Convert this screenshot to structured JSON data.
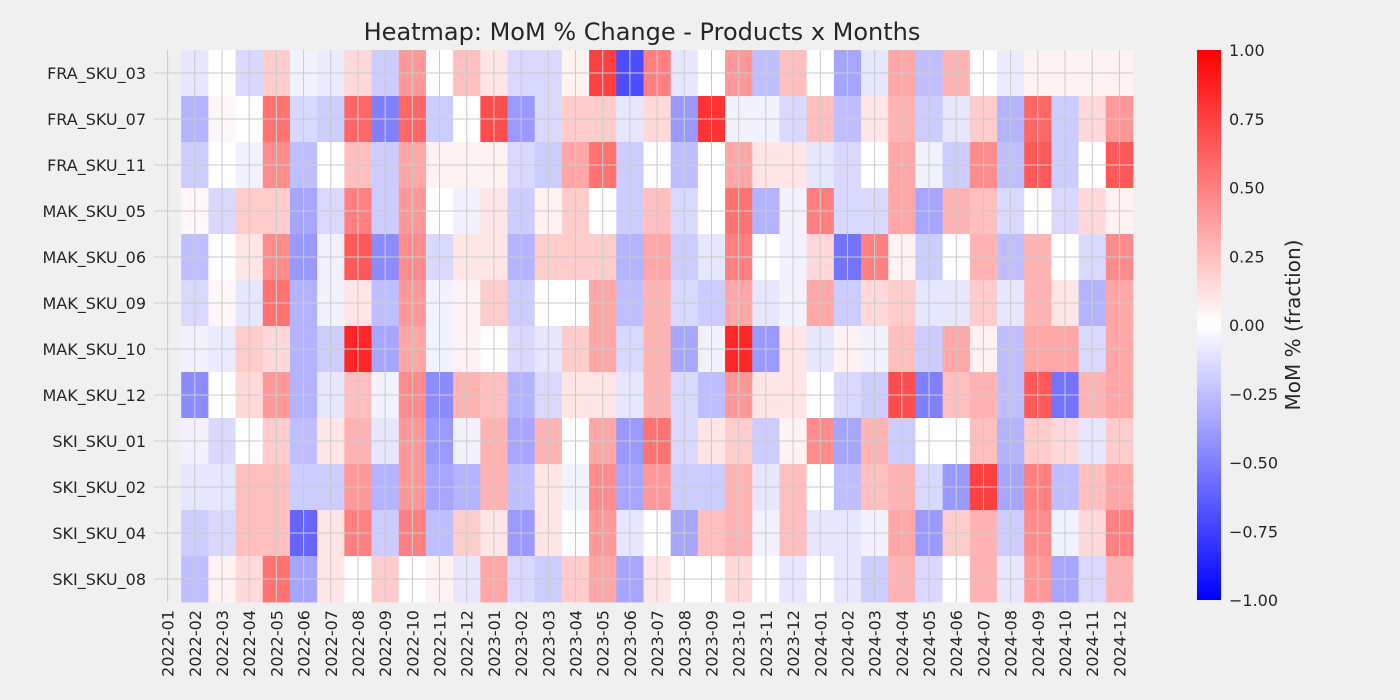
{
  "chart_data": {
    "type": "heatmap",
    "title": "Heatmap: MoM % Change - Products x Months",
    "colorbar_label": "MoM % (fraction)",
    "colormap": "bwr",
    "vmin": -1.0,
    "vmax": 1.0,
    "colorbar_ticks": [
      "1.00",
      "0.75",
      "0.50",
      "0.25",
      "0.00",
      "−0.25",
      "−0.50",
      "−0.75",
      "−1.00"
    ],
    "grid": true,
    "missing_first_month": true,
    "columns": [
      "2022-01",
      "2022-02",
      "2022-03",
      "2022-04",
      "2022-05",
      "2022-06",
      "2022-07",
      "2022-08",
      "2022-09",
      "2022-10",
      "2022-11",
      "2022-12",
      "2023-01",
      "2023-02",
      "2023-03",
      "2023-04",
      "2023-05",
      "2023-06",
      "2023-07",
      "2023-08",
      "2023-09",
      "2023-10",
      "2023-11",
      "2023-12",
      "2024-01",
      "2024-02",
      "2024-03",
      "2024-04",
      "2024-05",
      "2024-06",
      "2024-07",
      "2024-08",
      "2024-09",
      "2024-10",
      "2024-11",
      "2024-12"
    ],
    "rows": [
      "FRA_SKU_03",
      "FRA_SKU_07",
      "FRA_SKU_11",
      "MAK_SKU_05",
      "MAK_SKU_06",
      "MAK_SKU_09",
      "MAK_SKU_10",
      "MAK_SKU_12",
      "SKI_SKU_01",
      "SKI_SKU_02",
      "SKI_SKU_04",
      "SKI_SKU_08"
    ],
    "values": [
      [
        null,
        -0.1,
        0.0,
        -0.15,
        0.2,
        -0.05,
        -0.08,
        0.15,
        -0.2,
        0.4,
        0.0,
        0.25,
        0.1,
        -0.15,
        -0.15,
        0.05,
        0.75,
        -0.7,
        0.5,
        -0.1,
        0.0,
        0.4,
        -0.25,
        0.25,
        0.0,
        -0.35,
        -0.1,
        0.35,
        -0.25,
        0.3,
        0.0,
        -0.08,
        0.05,
        0.05,
        0.05,
        0.05
      ],
      [
        null,
        -0.3,
        0.03,
        0.0,
        0.55,
        -0.15,
        -0.2,
        0.6,
        -0.5,
        0.6,
        -0.2,
        0.0,
        0.7,
        -0.4,
        -0.15,
        0.2,
        0.2,
        -0.1,
        0.15,
        -0.4,
        0.8,
        -0.05,
        -0.05,
        -0.15,
        0.25,
        -0.25,
        0.1,
        0.3,
        -0.2,
        -0.1,
        0.2,
        -0.3,
        0.6,
        -0.2,
        0.15,
        0.4
      ],
      [
        null,
        -0.2,
        0.0,
        -0.05,
        0.45,
        -0.25,
        0.0,
        0.25,
        -0.2,
        0.35,
        0.05,
        0.05,
        0.05,
        -0.15,
        -0.2,
        0.35,
        0.55,
        -0.2,
        0.0,
        -0.25,
        0.0,
        0.35,
        0.1,
        0.1,
        -0.1,
        -0.15,
        0.0,
        0.35,
        -0.05,
        -0.2,
        0.45,
        -0.25,
        0.65,
        -0.2,
        0.0,
        0.65
      ],
      [
        null,
        0.03,
        -0.15,
        0.2,
        0.2,
        -0.35,
        -0.15,
        0.5,
        -0.2,
        0.4,
        0.0,
        -0.05,
        0.1,
        -0.2,
        0.05,
        0.2,
        0.0,
        -0.2,
        0.25,
        -0.15,
        0.0,
        0.55,
        -0.3,
        -0.05,
        0.5,
        -0.15,
        -0.15,
        0.35,
        -0.35,
        0.3,
        0.25,
        -0.15,
        0.0,
        -0.15,
        0.15,
        0.05
      ],
      [
        null,
        -0.25,
        0.0,
        0.1,
        0.45,
        -0.4,
        -0.05,
        0.65,
        -0.45,
        0.45,
        -0.15,
        0.1,
        0.1,
        -0.3,
        0.2,
        0.2,
        0.2,
        -0.3,
        0.35,
        -0.2,
        -0.1,
        0.5,
        0.0,
        -0.05,
        0.15,
        -0.55,
        0.5,
        0.05,
        -0.2,
        0.0,
        0.3,
        -0.25,
        0.3,
        0.0,
        -0.15,
        0.45
      ],
      [
        null,
        -0.15,
        0.03,
        -0.1,
        0.55,
        -0.3,
        -0.05,
        0.1,
        -0.25,
        0.4,
        -0.05,
        0.05,
        0.2,
        -0.2,
        0.0,
        0.0,
        0.35,
        -0.25,
        0.3,
        -0.15,
        -0.2,
        0.35,
        -0.1,
        -0.05,
        0.35,
        -0.2,
        0.15,
        0.2,
        -0.1,
        -0.1,
        0.2,
        -0.1,
        0.3,
        0.1,
        -0.3,
        0.35
      ],
      [
        null,
        -0.05,
        -0.08,
        0.2,
        0.15,
        -0.3,
        -0.2,
        0.85,
        -0.35,
        0.35,
        -0.05,
        0.05,
        0.0,
        -0.15,
        -0.1,
        0.2,
        0.35,
        -0.15,
        0.3,
        -0.35,
        -0.05,
        0.85,
        -0.4,
        0.1,
        -0.1,
        0.05,
        -0.05,
        0.25,
        -0.2,
        0.35,
        0.05,
        -0.25,
        0.35,
        0.35,
        -0.15,
        0.35
      ],
      [
        null,
        -0.45,
        0.0,
        0.15,
        0.4,
        -0.3,
        -0.1,
        0.25,
        -0.05,
        0.45,
        -0.45,
        0.3,
        0.25,
        -0.3,
        -0.15,
        0.1,
        0.1,
        -0.1,
        0.3,
        -0.15,
        -0.25,
        0.4,
        0.1,
        0.1,
        0.0,
        -0.15,
        -0.2,
        0.7,
        -0.5,
        0.25,
        0.3,
        -0.25,
        0.65,
        -0.55,
        0.3,
        0.35
      ],
      [
        null,
        -0.05,
        -0.15,
        0.0,
        0.2,
        -0.25,
        0.1,
        0.3,
        -0.1,
        0.4,
        -0.4,
        -0.05,
        0.3,
        -0.35,
        0.3,
        0.0,
        0.35,
        -0.4,
        0.55,
        -0.15,
        0.1,
        0.2,
        -0.2,
        0.05,
        0.45,
        -0.35,
        0.3,
        -0.2,
        0.0,
        0.0,
        0.25,
        -0.3,
        0.2,
        0.15,
        -0.1,
        0.2
      ],
      [
        null,
        -0.1,
        -0.1,
        0.25,
        0.25,
        -0.2,
        -0.2,
        0.4,
        -0.3,
        0.4,
        -0.35,
        -0.3,
        0.3,
        -0.25,
        0.1,
        -0.05,
        0.45,
        -0.35,
        0.4,
        -0.2,
        -0.2,
        0.3,
        -0.1,
        0.25,
        0.0,
        -0.25,
        0.25,
        0.3,
        -0.15,
        -0.4,
        0.75,
        -0.35,
        0.5,
        -0.25,
        0.25,
        0.35
      ],
      [
        null,
        -0.2,
        -0.15,
        0.25,
        0.25,
        -0.6,
        0.1,
        0.5,
        -0.2,
        0.5,
        -0.25,
        0.2,
        0.1,
        -0.4,
        0.1,
        0.0,
        0.4,
        -0.1,
        0.0,
        -0.35,
        0.25,
        0.3,
        -0.05,
        0.25,
        -0.1,
        -0.1,
        -0.05,
        0.35,
        -0.4,
        0.2,
        0.3,
        -0.2,
        0.45,
        -0.05,
        0.15,
        0.5
      ],
      [
        null,
        -0.25,
        0.05,
        0.15,
        0.55,
        -0.35,
        0.1,
        0.0,
        0.2,
        0.0,
        0.05,
        -0.1,
        0.35,
        -0.15,
        -0.2,
        0.2,
        0.35,
        -0.35,
        0.1,
        0.0,
        0.0,
        0.15,
        0.0,
        -0.1,
        0.0,
        -0.1,
        -0.2,
        0.3,
        -0.15,
        0.0,
        0.3,
        -0.1,
        0.4,
        -0.35,
        -0.15,
        0.3
      ]
    ]
  }
}
